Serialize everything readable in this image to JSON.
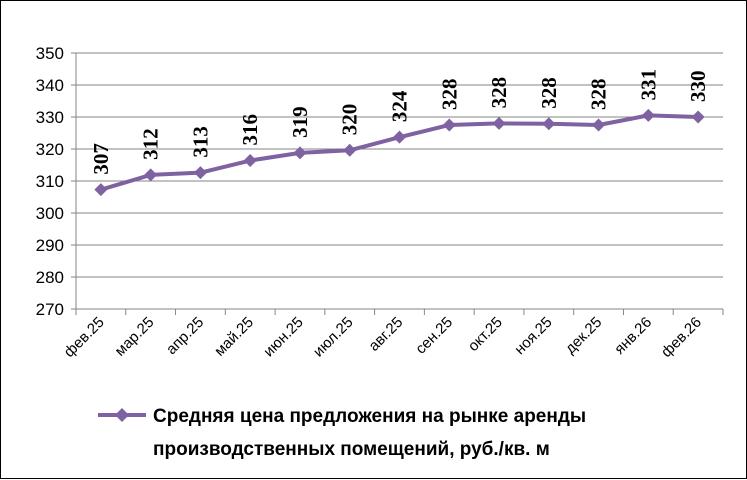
{
  "chart_data": {
    "type": "line",
    "categories": [
      "фев.25",
      "мар.25",
      "апр.25",
      "май.25",
      "июн.25",
      "июл.25",
      "авг.25",
      "сен.25",
      "окт.25",
      "ноя.25",
      "дек.25",
      "янв.26",
      "фев.26"
    ],
    "series": [
      {
        "name": "Средняя цена предложения на рынке аренды производственных помещений,  руб./кв. м",
        "values": [
          307,
          312,
          313,
          316,
          319,
          320,
          324,
          328,
          328,
          328,
          328,
          331,
          330
        ],
        "plotted_values": [
          307.3,
          311.9,
          312.6,
          316.4,
          318.8,
          319.6,
          323.7,
          327.5,
          328.0,
          327.9,
          327.5,
          330.5,
          330.0
        ],
        "color": "#7F62A1",
        "marker": "diamond"
      }
    ],
    "legend_lines": [
      "Средняя цена предложения на рынке аренды",
      "производственных помещений,  руб./кв. м"
    ],
    "title": "",
    "xlabel": "",
    "ylabel": "",
    "ylim": [
      270,
      350
    ],
    "yticks": [
      270,
      280,
      290,
      300,
      310,
      320,
      330,
      340,
      350
    ],
    "grid": true,
    "legend_position": "bottom",
    "data_labels": true
  }
}
